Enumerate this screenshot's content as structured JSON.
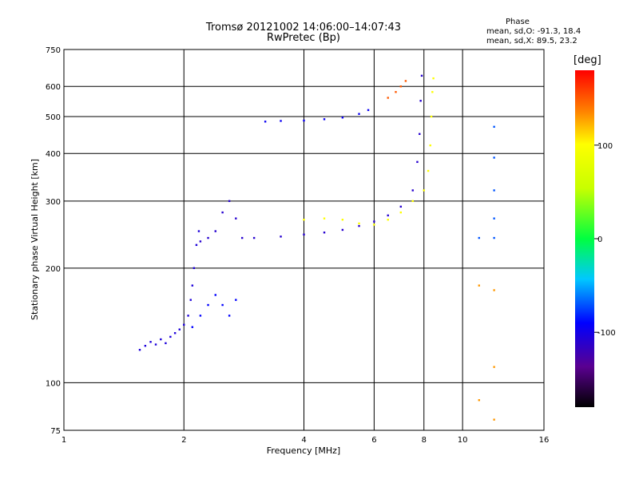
{
  "header": {
    "title_line1": "Tromsø 20121002 14:06:00–14:07:43",
    "title_line2": "RwPretec (Bp)",
    "phase_label": "Phase",
    "phase_o": "mean, sd,O: -91.3, 18.4",
    "phase_x": "mean, sd,X: 89.5, 23.2"
  },
  "colorbar": {
    "unit": "[deg]",
    "ticks": [
      {
        "value": 100,
        "label": "100"
      },
      {
        "value": 0,
        "label": "0"
      },
      {
        "value": -100,
        "label": "-100"
      }
    ],
    "range": [
      -180,
      180
    ]
  },
  "chart_data": {
    "type": "scatter",
    "xlabel": "Frequency [MHz]",
    "ylabel": "Stationary phase Virtual Height [km]",
    "xscale": "log",
    "yscale": "log",
    "xlim": [
      1,
      16
    ],
    "ylim": [
      75,
      750
    ],
    "xticks": [
      {
        "value": 1,
        "label": "1"
      },
      {
        "value": 2,
        "label": "2"
      },
      {
        "value": 4,
        "label": "4"
      },
      {
        "value": 6,
        "label": "6"
      },
      {
        "value": 8,
        "label": "8"
      },
      {
        "value": 10,
        "label": "10"
      },
      {
        "value": 16,
        "label": "16"
      }
    ],
    "yticks": [
      {
        "value": 75,
        "label": "75"
      },
      {
        "value": 100,
        "label": "100"
      },
      {
        "value": 200,
        "label": "200"
      },
      {
        "value": 300,
        "label": "300"
      },
      {
        "value": 400,
        "label": "400"
      },
      {
        "value": 500,
        "label": "500"
      },
      {
        "value": 600,
        "label": "600"
      },
      {
        "value": 750,
        "label": "750"
      }
    ],
    "grid": true,
    "clusters": [
      {
        "description_phase": -105,
        "points": [
          [
            1.55,
            122
          ],
          [
            1.6,
            125
          ],
          [
            1.65,
            128
          ],
          [
            1.7,
            126
          ],
          [
            1.75,
            130
          ],
          [
            1.8,
            127
          ],
          [
            1.85,
            132
          ],
          [
            1.9,
            135
          ],
          [
            1.95,
            138
          ],
          [
            2.0,
            142
          ],
          [
            2.05,
            150
          ],
          [
            2.08,
            165
          ],
          [
            2.1,
            180
          ],
          [
            2.12,
            200
          ],
          [
            2.15,
            230
          ],
          [
            2.18,
            250
          ]
        ]
      },
      {
        "description_phase": -110,
        "points": [
          [
            2.2,
            235
          ],
          [
            2.3,
            240
          ],
          [
            2.4,
            250
          ],
          [
            2.5,
            280
          ],
          [
            2.6,
            300
          ],
          [
            2.7,
            270
          ],
          [
            2.8,
            240
          ],
          [
            3.0,
            240
          ],
          [
            3.5,
            242
          ],
          [
            4.0,
            245
          ],
          [
            4.5,
            248
          ],
          [
            5.0,
            252
          ],
          [
            5.5,
            258
          ],
          [
            6.0,
            265
          ],
          [
            6.5,
            275
          ],
          [
            7.0,
            290
          ],
          [
            7.5,
            320
          ],
          [
            7.7,
            380
          ],
          [
            7.8,
            450
          ],
          [
            7.85,
            550
          ],
          [
            7.9,
            640
          ]
        ]
      },
      {
        "description_phase": 100,
        "points": [
          [
            4.0,
            268
          ],
          [
            4.5,
            270
          ],
          [
            5.0,
            268
          ],
          [
            5.5,
            262
          ],
          [
            6.0,
            260
          ],
          [
            6.5,
            268
          ],
          [
            7.0,
            280
          ],
          [
            7.5,
            300
          ],
          [
            8.0,
            320
          ],
          [
            8.2,
            360
          ],
          [
            8.3,
            420
          ],
          [
            8.35,
            500
          ],
          [
            8.4,
            580
          ],
          [
            8.45,
            630
          ]
        ]
      },
      {
        "description_phase": -95,
        "points": [
          [
            3.2,
            485
          ],
          [
            3.5,
            487
          ],
          [
            4.0,
            488
          ],
          [
            4.5,
            492
          ],
          [
            5.0,
            497
          ],
          [
            5.5,
            508
          ],
          [
            5.8,
            520
          ]
        ]
      },
      {
        "description_phase": 150,
        "points": [
          [
            6.5,
            560
          ],
          [
            6.8,
            580
          ],
          [
            7.0,
            600
          ],
          [
            7.2,
            620
          ]
        ]
      },
      {
        "description_phase": -90,
        "points": [
          [
            2.1,
            140
          ],
          [
            2.2,
            150
          ],
          [
            2.3,
            160
          ],
          [
            2.4,
            170
          ],
          [
            2.5,
            160
          ],
          [
            2.6,
            150
          ],
          [
            2.7,
            165
          ]
        ]
      },
      {
        "description_phase": 130,
        "points": [
          [
            11,
            90
          ],
          [
            11,
            180
          ],
          [
            12,
            110
          ],
          [
            12,
            175
          ],
          [
            12,
            80
          ]
        ]
      },
      {
        "description_phase": -70,
        "points": [
          [
            12,
            470
          ],
          [
            12,
            390
          ],
          [
            12,
            320
          ],
          [
            12,
            270
          ],
          [
            12,
            240
          ],
          [
            11,
            240
          ]
        ]
      }
    ]
  }
}
